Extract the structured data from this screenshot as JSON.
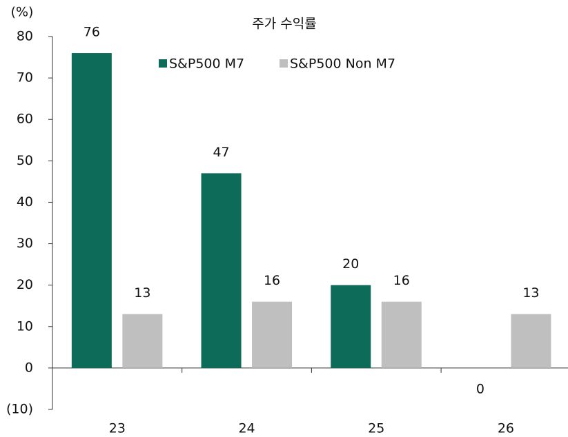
{
  "chart_data": {
    "type": "bar",
    "title": "주가 수익률",
    "y_unit": "(%)",
    "categories": [
      "23",
      "24",
      "25",
      "26"
    ],
    "series": [
      {
        "name": "S&P500 M7",
        "color": "#0c6b59",
        "values": [
          76,
          47,
          20,
          0
        ]
      },
      {
        "name": "S&P500 Non M7",
        "color": "#bfbfbf",
        "values": [
          13,
          16,
          16,
          13
        ]
      }
    ],
    "ylim": [
      -10,
      80
    ],
    "yticks": [
      {
        "value": -10,
        "label": "(10)"
      },
      0,
      10,
      20,
      30,
      40,
      50,
      60,
      70,
      80
    ],
    "grid": false,
    "legend": "top"
  }
}
